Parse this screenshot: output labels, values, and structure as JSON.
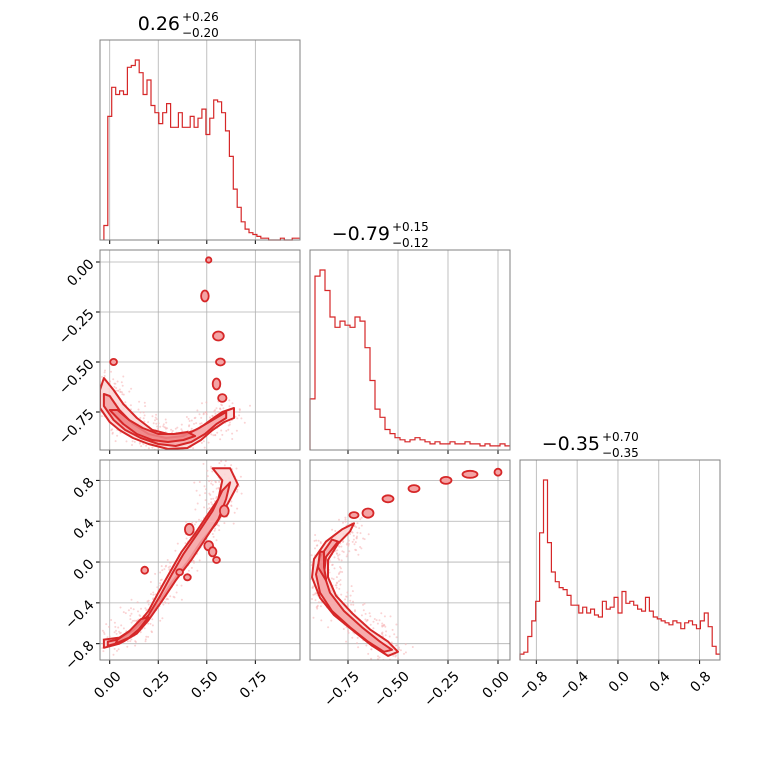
{
  "colors": {
    "series": "#d62728",
    "fill": "#f4a3a4",
    "scatter": "#f7b6b8",
    "grid": "#b0b0b0",
    "frame": "#808080"
  },
  "chart_data": {
    "type": "corner",
    "grid": true,
    "params": [
      {
        "range": [
          -0.05,
          0.98
        ],
        "ticks": [
          0.0,
          0.25,
          0.5,
          0.75
        ],
        "tick_labels": [
          "0.00",
          "0.25",
          "0.50",
          "0.75"
        ],
        "title": {
          "main": "0.26",
          "plus": "+0.26",
          "minus": "−0.20"
        },
        "hist_edges": [
          -0.03,
          0.98
        ],
        "hist_counts": [
          0.08,
          0.68,
          0.84,
          0.8,
          0.82,
          0.8,
          0.95,
          0.96,
          0.99,
          0.92,
          0.8,
          0.88,
          0.74,
          0.7,
          0.64,
          0.7,
          0.75,
          0.62,
          0.62,
          0.7,
          0.62,
          0.62,
          0.68,
          0.62,
          0.67,
          0.72,
          0.58,
          0.67,
          0.77,
          0.76,
          0.7,
          0.6,
          0.46,
          0.28,
          0.18,
          0.1,
          0.06,
          0.04,
          0.03,
          0.02,
          0.01,
          0.01,
          0.0,
          0.0,
          0.0,
          0.01,
          0.0,
          0.0,
          0.01,
          0.01
        ]
      },
      {
        "range": [
          -0.94,
          0.06
        ],
        "ticks": [
          -0.75,
          -0.5,
          -0.25,
          0.0
        ],
        "tick_labels": [
          "−0.75",
          "−0.50",
          "−0.25",
          "0.00"
        ],
        "title": {
          "main": "−0.79",
          "plus": "+0.15",
          "minus": "−0.12"
        },
        "hist_edges": [
          -0.94,
          0.06
        ],
        "hist_counts": [
          0.25,
          0.85,
          0.88,
          0.78,
          0.65,
          0.6,
          0.63,
          0.61,
          0.6,
          0.65,
          0.63,
          0.5,
          0.34,
          0.2,
          0.16,
          0.1,
          0.08,
          0.06,
          0.05,
          0.04,
          0.05,
          0.06,
          0.05,
          0.04,
          0.03,
          0.04,
          0.03,
          0.03,
          0.04,
          0.03,
          0.03,
          0.04,
          0.03,
          0.03,
          0.02,
          0.03,
          0.02,
          0.02,
          0.03,
          0.02
        ]
      },
      {
        "range": [
          -0.96,
          1.0
        ],
        "ticks": [
          -0.8,
          -0.4,
          0.0,
          0.4,
          0.8
        ],
        "tick_labels": [
          "−0.8",
          "−0.4",
          "0.0",
          "0.4",
          "0.8"
        ],
        "title": {
          "main": "−0.35",
          "plus": "+0.70",
          "minus": "−0.35"
        },
        "hist_edges": [
          -0.96,
          1.0
        ],
        "hist_counts": [
          0.03,
          0.04,
          0.12,
          0.2,
          0.3,
          0.65,
          0.92,
          0.6,
          0.45,
          0.4,
          0.37,
          0.36,
          0.33,
          0.28,
          0.28,
          0.24,
          0.27,
          0.24,
          0.26,
          0.23,
          0.22,
          0.3,
          0.26,
          0.27,
          0.32,
          0.24,
          0.35,
          0.29,
          0.3,
          0.28,
          0.26,
          0.25,
          0.32,
          0.25,
          0.22,
          0.21,
          0.2,
          0.19,
          0.18,
          0.2,
          0.19,
          0.16,
          0.19,
          0.2,
          0.18,
          0.16,
          0.2,
          0.24,
          0.17,
          0.07,
          0.03
        ]
      }
    ],
    "pairs": [
      {
        "x_param": 0,
        "y_param": 1,
        "contour_levels": [
          [
            [
              -0.05,
              -0.73
            ],
            [
              0.0,
              -0.8
            ],
            [
              0.05,
              -0.84
            ],
            [
              0.12,
              -0.88
            ],
            [
              0.2,
              -0.91
            ],
            [
              0.3,
              -0.935
            ],
            [
              0.4,
              -0.93
            ],
            [
              0.47,
              -0.89
            ],
            [
              0.53,
              -0.84
            ],
            [
              0.59,
              -0.8
            ],
            [
              0.64,
              -0.78
            ],
            [
              0.64,
              -0.73
            ],
            [
              0.58,
              -0.75
            ],
            [
              0.52,
              -0.79
            ],
            [
              0.45,
              -0.84
            ],
            [
              0.38,
              -0.86
            ],
            [
              0.3,
              -0.86
            ],
            [
              0.22,
              -0.84
            ],
            [
              0.14,
              -0.78
            ],
            [
              0.07,
              -0.71
            ],
            [
              0.02,
              -0.64
            ],
            [
              -0.03,
              -0.58
            ],
            [
              -0.05,
              -0.64
            ]
          ],
          [
            [
              -0.03,
              -0.72
            ],
            [
              0.02,
              -0.79
            ],
            [
              0.08,
              -0.84
            ],
            [
              0.16,
              -0.88
            ],
            [
              0.25,
              -0.91
            ],
            [
              0.34,
              -0.92
            ],
            [
              0.42,
              -0.9
            ],
            [
              0.49,
              -0.86
            ],
            [
              0.55,
              -0.81
            ],
            [
              0.6,
              -0.78
            ],
            [
              0.6,
              -0.75
            ],
            [
              0.53,
              -0.79
            ],
            [
              0.46,
              -0.83
            ],
            [
              0.38,
              -0.87
            ],
            [
              0.29,
              -0.88
            ],
            [
              0.2,
              -0.86
            ],
            [
              0.12,
              -0.81
            ],
            [
              0.05,
              -0.74
            ],
            [
              0.0,
              -0.67
            ],
            [
              -0.03,
              -0.66
            ]
          ],
          [
            [
              0.0,
              -0.74
            ],
            [
              0.07,
              -0.81
            ],
            [
              0.14,
              -0.86
            ],
            [
              0.22,
              -0.89
            ],
            [
              0.3,
              -0.9
            ],
            [
              0.38,
              -0.89
            ],
            [
              0.44,
              -0.87
            ],
            [
              0.4,
              -0.85
            ],
            [
              0.33,
              -0.86
            ],
            [
              0.25,
              -0.86
            ],
            [
              0.17,
              -0.83
            ],
            [
              0.1,
              -0.79
            ],
            [
              0.04,
              -0.74
            ]
          ]
        ],
        "islands": [
          [
            0.49,
            -0.17,
            0.012,
            0.02
          ],
          [
            0.56,
            -0.37,
            0.02,
            0.015
          ],
          [
            0.57,
            -0.5,
            0.015,
            0.01
          ],
          [
            0.55,
            -0.61,
            0.012,
            0.02
          ],
          [
            0.58,
            -0.68,
            0.014,
            0.012
          ],
          [
            0.51,
            0.01,
            0.006,
            0.006
          ],
          [
            0.02,
            -0.5,
            0.01,
            0.008
          ]
        ]
      },
      {
        "x_param": 0,
        "y_param": 2,
        "contour_levels": [
          [
            [
              -0.03,
              -0.84
            ],
            [
              0.05,
              -0.8
            ],
            [
              0.12,
              -0.72
            ],
            [
              0.18,
              -0.6
            ],
            [
              0.25,
              -0.4
            ],
            [
              0.32,
              -0.2
            ],
            [
              0.4,
              0.0
            ],
            [
              0.47,
              0.2
            ],
            [
              0.55,
              0.38
            ],
            [
              0.61,
              0.58
            ],
            [
              0.66,
              0.76
            ],
            [
              0.62,
              0.92
            ],
            [
              0.53,
              0.92
            ],
            [
              0.58,
              0.8
            ],
            [
              0.56,
              0.62
            ],
            [
              0.5,
              0.45
            ],
            [
              0.44,
              0.28
            ],
            [
              0.37,
              0.1
            ],
            [
              0.31,
              -0.1
            ],
            [
              0.25,
              -0.3
            ],
            [
              0.2,
              -0.48
            ],
            [
              0.13,
              -0.64
            ],
            [
              0.05,
              -0.74
            ],
            [
              -0.03,
              -0.76
            ]
          ],
          [
            [
              -0.01,
              -0.82
            ],
            [
              0.07,
              -0.78
            ],
            [
              0.14,
              -0.7
            ],
            [
              0.2,
              -0.57
            ],
            [
              0.27,
              -0.38
            ],
            [
              0.34,
              -0.18
            ],
            [
              0.42,
              0.02
            ],
            [
              0.49,
              0.22
            ],
            [
              0.56,
              0.42
            ],
            [
              0.6,
              0.62
            ],
            [
              0.62,
              0.78
            ],
            [
              0.58,
              0.7
            ],
            [
              0.53,
              0.5
            ],
            [
              0.46,
              0.3
            ],
            [
              0.38,
              0.08
            ],
            [
              0.32,
              -0.12
            ],
            [
              0.26,
              -0.33
            ],
            [
              0.2,
              -0.52
            ],
            [
              0.12,
              -0.67
            ],
            [
              0.04,
              -0.76
            ],
            [
              -0.01,
              -0.78
            ]
          ],
          [
            [
              0.03,
              -0.8
            ],
            [
              0.1,
              -0.74
            ],
            [
              0.15,
              -0.66
            ],
            [
              0.2,
              -0.54
            ],
            [
              0.16,
              -0.56
            ],
            [
              0.1,
              -0.68
            ],
            [
              0.04,
              -0.76
            ]
          ]
        ],
        "islands": [
          [
            0.41,
            0.32,
            0.015,
            0.04
          ],
          [
            0.51,
            0.16,
            0.015,
            0.03
          ],
          [
            0.53,
            0.1,
            0.012,
            0.03
          ],
          [
            0.55,
            0.02,
            0.01,
            0.015
          ],
          [
            0.18,
            -0.08,
            0.01,
            0.02
          ],
          [
            0.36,
            -0.1,
            0.01,
            0.015
          ],
          [
            0.4,
            -0.15,
            0.01,
            0.015
          ],
          [
            0.59,
            0.5,
            0.015,
            0.04
          ]
        ]
      },
      {
        "x_param": 1,
        "y_param": 2,
        "contour_levels": [
          [
            [
              -0.55,
              -0.92
            ],
            [
              -0.63,
              -0.82
            ],
            [
              -0.72,
              -0.68
            ],
            [
              -0.82,
              -0.52
            ],
            [
              -0.89,
              -0.35
            ],
            [
              -0.93,
              -0.15
            ],
            [
              -0.92,
              0.03
            ],
            [
              -0.86,
              0.2
            ],
            [
              -0.78,
              0.32
            ],
            [
              -0.72,
              0.38
            ],
            [
              -0.74,
              0.3
            ],
            [
              -0.8,
              0.18
            ],
            [
              -0.85,
              0.02
            ],
            [
              -0.85,
              -0.15
            ],
            [
              -0.81,
              -0.33
            ],
            [
              -0.73,
              -0.5
            ],
            [
              -0.64,
              -0.66
            ],
            [
              -0.55,
              -0.78
            ],
            [
              -0.5,
              -0.88
            ]
          ],
          [
            [
              -0.57,
              -0.88
            ],
            [
              -0.65,
              -0.78
            ],
            [
              -0.74,
              -0.64
            ],
            [
              -0.83,
              -0.48
            ],
            [
              -0.89,
              -0.3
            ],
            [
              -0.91,
              -0.12
            ],
            [
              -0.89,
              0.05
            ],
            [
              -0.83,
              0.22
            ],
            [
              -0.8,
              0.2
            ],
            [
              -0.86,
              0.05
            ],
            [
              -0.87,
              -0.12
            ],
            [
              -0.84,
              -0.3
            ],
            [
              -0.77,
              -0.48
            ],
            [
              -0.68,
              -0.64
            ],
            [
              -0.59,
              -0.78
            ],
            [
              -0.53,
              -0.86
            ]
          ],
          [
            [
              -0.86,
              -0.18
            ],
            [
              -0.9,
              -0.05
            ],
            [
              -0.89,
              0.1
            ],
            [
              -0.87,
              0.1
            ],
            [
              -0.87,
              -0.05
            ],
            [
              -0.86,
              -0.16
            ]
          ]
        ],
        "islands": [
          [
            -0.65,
            0.48,
            0.02,
            0.03
          ],
          [
            -0.55,
            0.62,
            0.02,
            0.02
          ],
          [
            -0.42,
            0.72,
            0.02,
            0.02
          ],
          [
            -0.26,
            0.8,
            0.02,
            0.02
          ],
          [
            -0.14,
            0.86,
            0.03,
            0.02
          ],
          [
            0.0,
            0.88,
            0.01,
            0.02
          ],
          [
            -0.72,
            0.46,
            0.015,
            0.015
          ]
        ]
      }
    ]
  }
}
